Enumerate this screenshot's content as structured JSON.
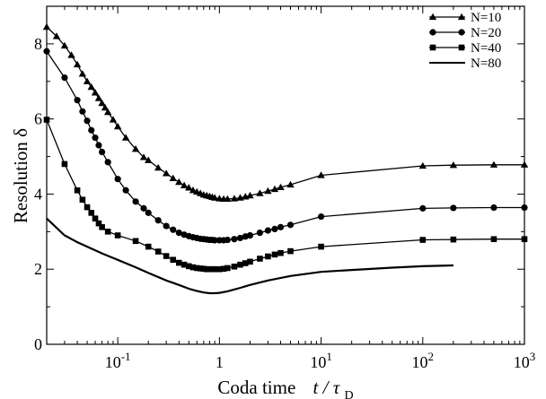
{
  "chart_data": {
    "type": "line",
    "x_scale": "log",
    "xlim": [
      0.02,
      1000
    ],
    "ylim": [
      0,
      9
    ],
    "xlabel_text": "Coda time",
    "xlabel_symbol": "t / τ",
    "xlabel_sub": "D",
    "ylabel": "Resolution  δ",
    "x_ticks": [
      {
        "value": 0.1,
        "base": "10",
        "exp": "-1"
      },
      {
        "value": 1,
        "base": "1",
        "exp": ""
      },
      {
        "value": 10,
        "base": "10",
        "exp": "1"
      },
      {
        "value": 100,
        "base": "10",
        "exp": "2"
      },
      {
        "value": 1000,
        "base": "10",
        "exp": "3"
      }
    ],
    "y_ticks": [
      0,
      2,
      4,
      6,
      8
    ],
    "legend_position": "top-right",
    "grid": false,
    "series": [
      {
        "name": "N=10",
        "marker": "triangle",
        "x": [
          0.02,
          0.025,
          0.03,
          0.035,
          0.04,
          0.045,
          0.05,
          0.055,
          0.06,
          0.065,
          0.07,
          0.075,
          0.08,
          0.09,
          0.1,
          0.12,
          0.15,
          0.18,
          0.2,
          0.25,
          0.3,
          0.35,
          0.4,
          0.45,
          0.5,
          0.55,
          0.6,
          0.65,
          0.7,
          0.75,
          0.8,
          0.85,
          0.9,
          1.0,
          1.1,
          1.2,
          1.4,
          1.6,
          1.8,
          2.0,
          2.5,
          3.0,
          3.5,
          4.0,
          5.0,
          10,
          100,
          200,
          500,
          1000
        ],
        "y": [
          8.45,
          8.2,
          7.95,
          7.7,
          7.45,
          7.2,
          7.0,
          6.85,
          6.7,
          6.55,
          6.42,
          6.3,
          6.18,
          5.98,
          5.8,
          5.5,
          5.2,
          4.98,
          4.9,
          4.7,
          4.55,
          4.42,
          4.32,
          4.23,
          4.17,
          4.1,
          4.06,
          4.02,
          3.98,
          3.96,
          3.94,
          3.92,
          3.9,
          3.88,
          3.87,
          3.87,
          3.88,
          3.9,
          3.93,
          3.96,
          4.02,
          4.08,
          4.13,
          4.18,
          4.25,
          4.5,
          4.75,
          4.77,
          4.78,
          4.78
        ]
      },
      {
        "name": "N=20",
        "marker": "circle",
        "x": [
          0.02,
          0.03,
          0.04,
          0.045,
          0.05,
          0.055,
          0.06,
          0.065,
          0.07,
          0.08,
          0.1,
          0.12,
          0.15,
          0.18,
          0.2,
          0.25,
          0.3,
          0.35,
          0.4,
          0.45,
          0.5,
          0.55,
          0.6,
          0.65,
          0.7,
          0.75,
          0.8,
          0.85,
          0.9,
          1.0,
          1.1,
          1.2,
          1.4,
          1.6,
          1.8,
          2.0,
          2.5,
          3.0,
          3.5,
          4.0,
          5.0,
          10,
          100,
          200,
          500,
          1000
        ],
        "y": [
          7.8,
          7.1,
          6.5,
          6.2,
          5.95,
          5.7,
          5.5,
          5.3,
          5.12,
          4.85,
          4.4,
          4.1,
          3.8,
          3.62,
          3.5,
          3.3,
          3.15,
          3.05,
          2.97,
          2.92,
          2.88,
          2.85,
          2.83,
          2.81,
          2.8,
          2.79,
          2.78,
          2.78,
          2.77,
          2.77,
          2.77,
          2.78,
          2.8,
          2.83,
          2.87,
          2.9,
          2.97,
          3.03,
          3.07,
          3.12,
          3.18,
          3.4,
          3.62,
          3.63,
          3.64,
          3.64
        ]
      },
      {
        "name": "N=40",
        "marker": "square",
        "x": [
          0.02,
          0.03,
          0.04,
          0.045,
          0.05,
          0.055,
          0.06,
          0.065,
          0.07,
          0.08,
          0.1,
          0.15,
          0.2,
          0.25,
          0.3,
          0.35,
          0.4,
          0.45,
          0.5,
          0.55,
          0.6,
          0.65,
          0.7,
          0.75,
          0.8,
          0.85,
          0.9,
          1.0,
          1.1,
          1.2,
          1.4,
          1.6,
          1.8,
          2.0,
          2.5,
          3.0,
          3.5,
          4.0,
          5.0,
          10,
          100,
          200,
          500,
          1000
        ],
        "y": [
          5.98,
          4.8,
          4.1,
          3.85,
          3.65,
          3.5,
          3.35,
          3.22,
          3.12,
          3.0,
          2.9,
          2.75,
          2.6,
          2.47,
          2.35,
          2.25,
          2.17,
          2.12,
          2.08,
          2.05,
          2.03,
          2.02,
          2.01,
          2.0,
          2.0,
          2.0,
          2.0,
          2.0,
          2.01,
          2.03,
          2.07,
          2.12,
          2.16,
          2.2,
          2.28,
          2.34,
          2.39,
          2.43,
          2.48,
          2.6,
          2.78,
          2.79,
          2.8,
          2.8
        ]
      },
      {
        "name": "N=80",
        "marker": "none",
        "x": [
          0.02,
          0.025,
          0.03,
          0.04,
          0.05,
          0.07,
          0.1,
          0.15,
          0.2,
          0.3,
          0.4,
          0.5,
          0.6,
          0.7,
          0.8,
          0.9,
          1.0,
          1.2,
          1.5,
          2.0,
          3.0,
          5.0,
          10,
          20,
          50,
          100,
          200
        ],
        "y": [
          3.35,
          3.1,
          2.9,
          2.72,
          2.6,
          2.42,
          2.25,
          2.05,
          1.9,
          1.7,
          1.58,
          1.48,
          1.42,
          1.38,
          1.36,
          1.36,
          1.37,
          1.41,
          1.48,
          1.58,
          1.7,
          1.82,
          1.93,
          1.98,
          2.04,
          2.08,
          2.1
        ]
      }
    ]
  }
}
